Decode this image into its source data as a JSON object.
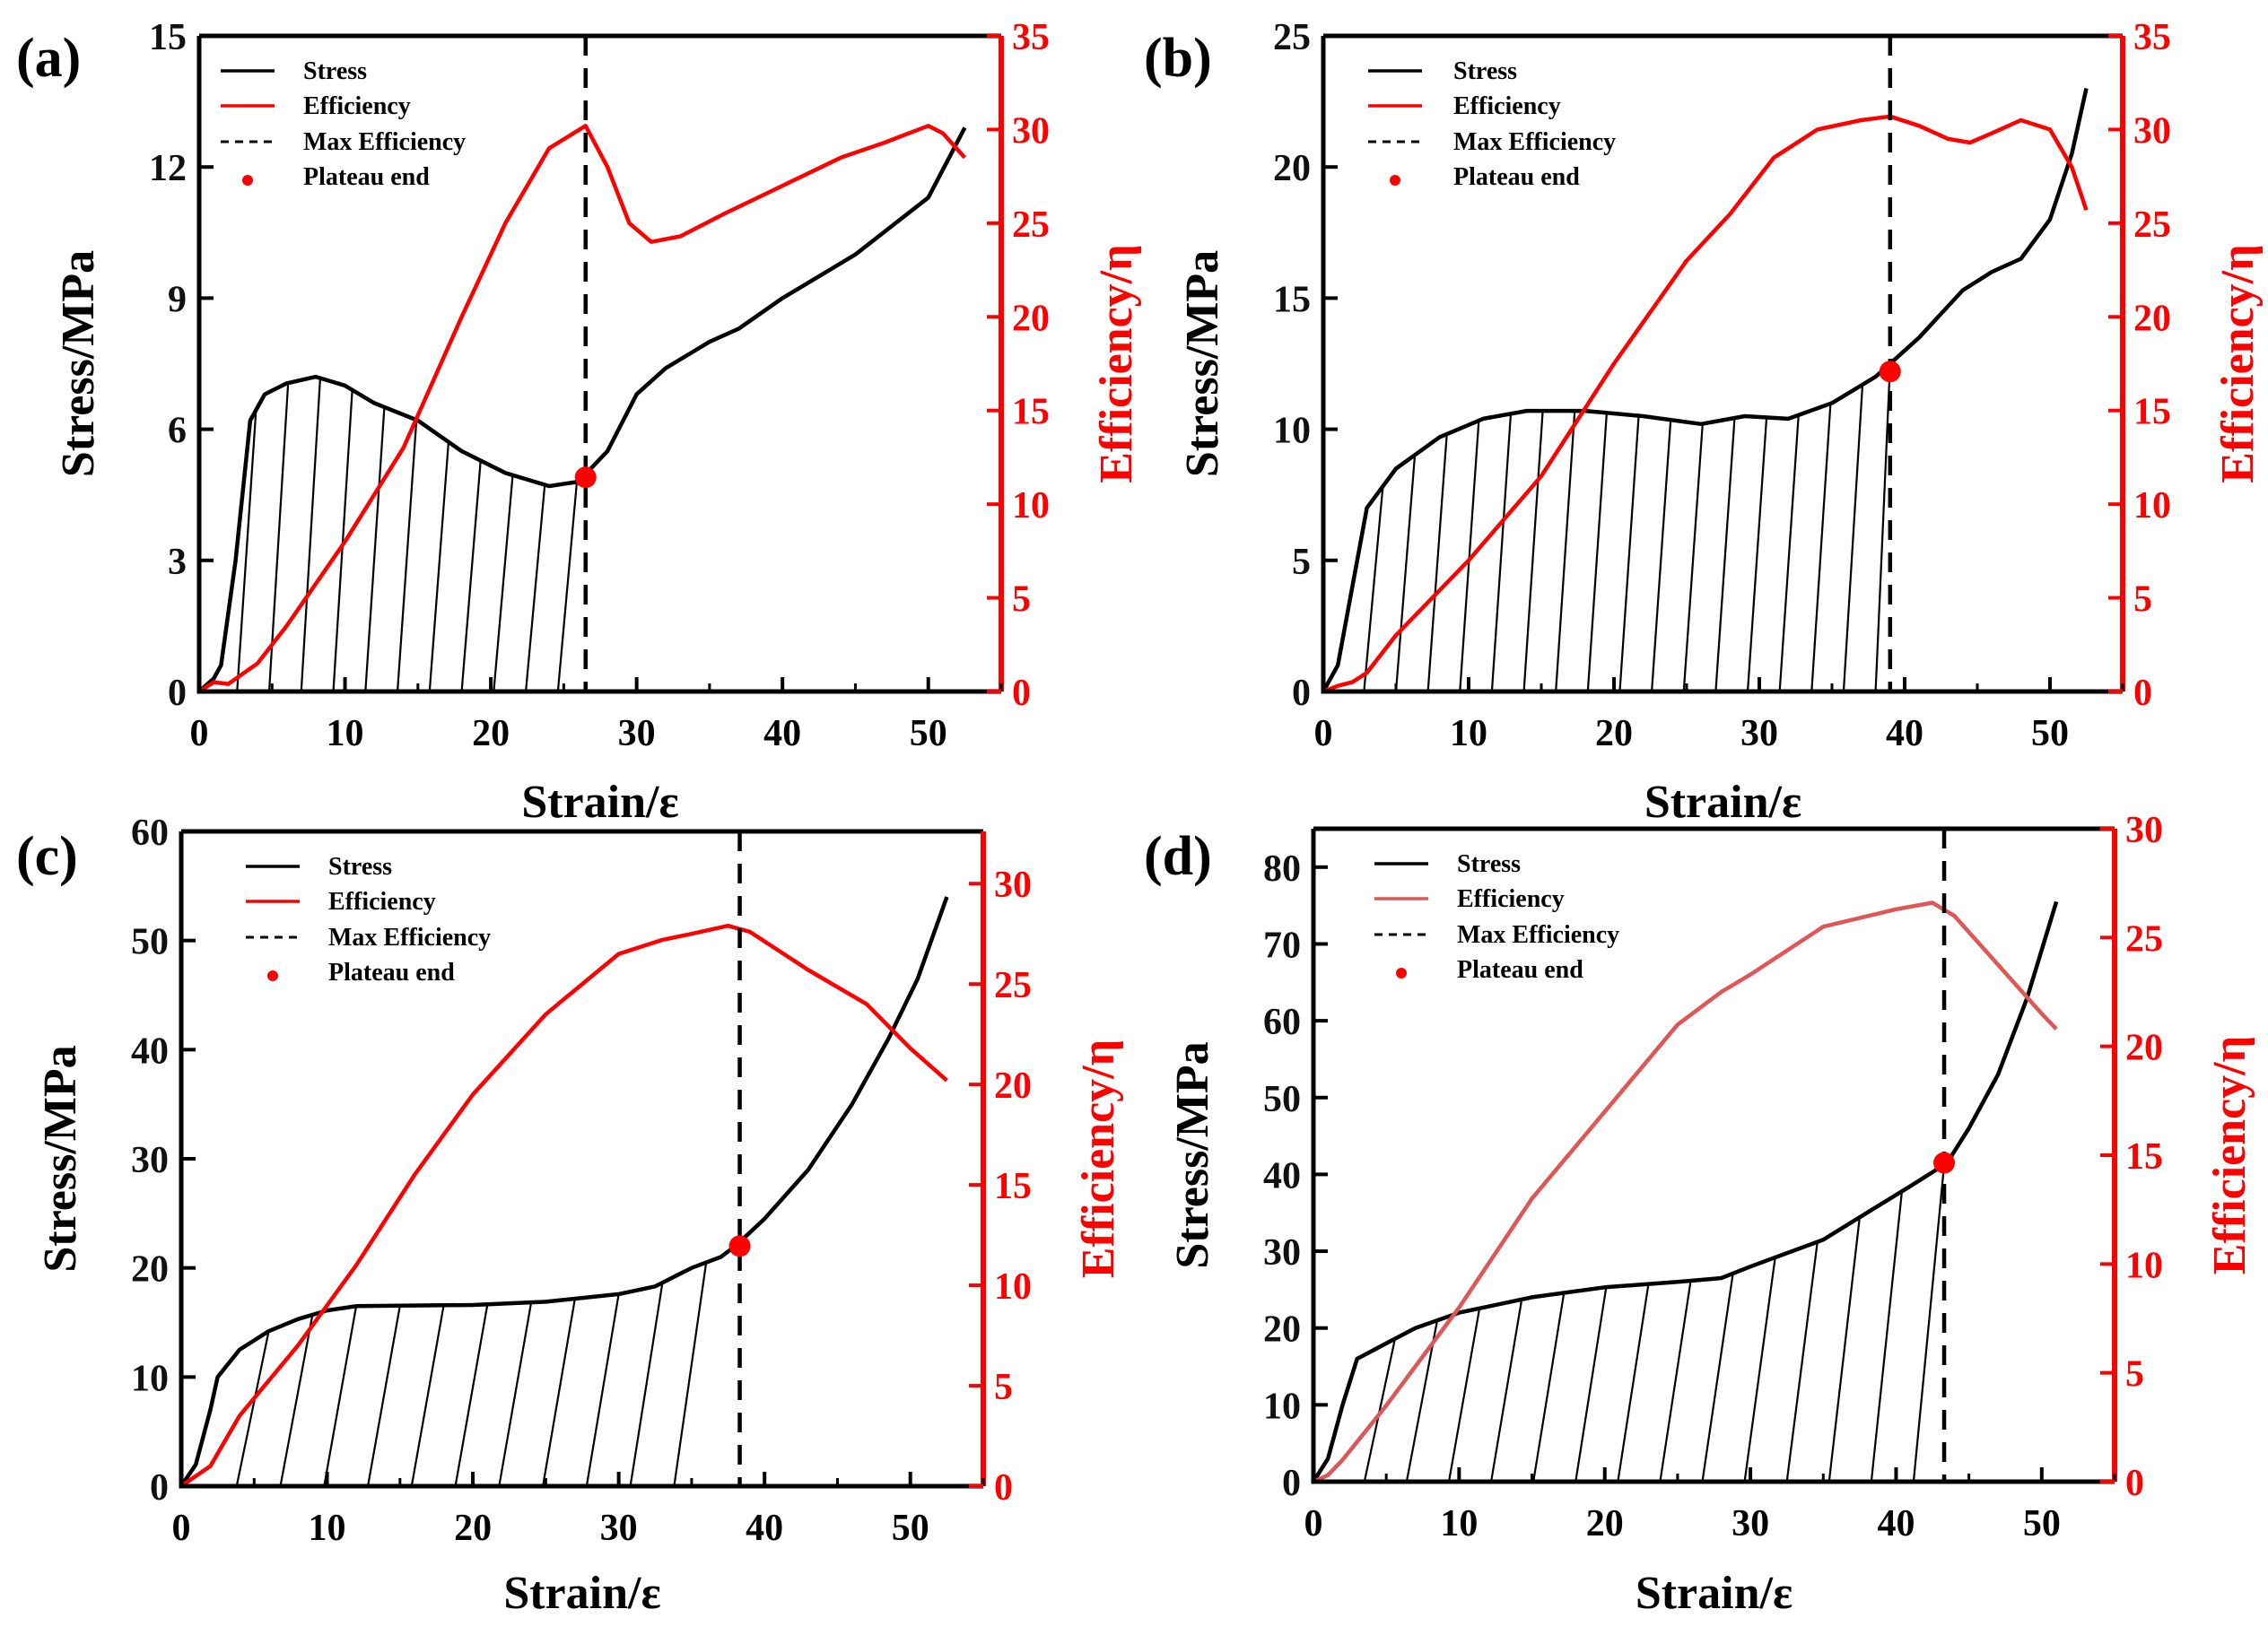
{
  "chart_data": [
    {
      "panel_label": "(a)",
      "type": "line",
      "xlabel": "Strain/ε",
      "ylabel": "Stress/MPa",
      "y2label": "Efficiency/η",
      "xlim": [
        0,
        55
      ],
      "ylim": [
        0,
        15
      ],
      "y2lim": [
        0,
        35
      ],
      "xticks": [
        0,
        10,
        20,
        30,
        40,
        50
      ],
      "yticks": [
        0,
        3,
        6,
        9,
        12,
        15
      ],
      "y2ticks": [
        0,
        5,
        10,
        15,
        20,
        25,
        30,
        35
      ],
      "legend": [
        "Stress",
        "Efficiency",
        "Max Efficiency",
        "Plateau end"
      ],
      "legend_position": "top-left",
      "max_efficiency_strain": 26.5,
      "plateau_end": [
        26.5,
        4.9
      ],
      "efficiency_color": "#ff0000",
      "stress": [
        [
          0,
          0
        ],
        [
          1,
          0.3
        ],
        [
          1.5,
          0.6
        ],
        [
          2.5,
          3
        ],
        [
          3.5,
          6.2
        ],
        [
          4.5,
          6.8
        ],
        [
          6,
          7.05
        ],
        [
          8,
          7.2
        ],
        [
          10,
          7.0
        ],
        [
          12,
          6.6
        ],
        [
          15,
          6.2
        ],
        [
          18,
          5.5
        ],
        [
          21,
          5.0
        ],
        [
          24,
          4.7
        ],
        [
          26,
          4.8
        ],
        [
          28,
          5.5
        ],
        [
          30,
          6.8
        ],
        [
          32,
          7.4
        ],
        [
          35,
          8.0
        ],
        [
          37,
          8.3
        ],
        [
          40,
          9.0
        ],
        [
          45,
          10.0
        ],
        [
          50,
          11.3
        ],
        [
          52.5,
          12.9
        ]
      ],
      "efficiency": [
        [
          0,
          0
        ],
        [
          1,
          0.5
        ],
        [
          2,
          0.4
        ],
        [
          4,
          1.5
        ],
        [
          6,
          3.5
        ],
        [
          10,
          8
        ],
        [
          14,
          13
        ],
        [
          18,
          20
        ],
        [
          21,
          25
        ],
        [
          24,
          29
        ],
        [
          26.5,
          30.2
        ],
        [
          28,
          28
        ],
        [
          29.5,
          25
        ],
        [
          31,
          24
        ],
        [
          33,
          24.3
        ],
        [
          36,
          25.5
        ],
        [
          40,
          27
        ],
        [
          44,
          28.5
        ],
        [
          47,
          29.3
        ],
        [
          50,
          30.2
        ],
        [
          51,
          29.8
        ],
        [
          52.5,
          28.5
        ]
      ]
    },
    {
      "panel_label": "(b)",
      "type": "line",
      "xlabel": "Strain/ε",
      "ylabel": "Stress/MPa",
      "y2label": "Efficiency/η",
      "xlim": [
        0,
        55
      ],
      "ylim": [
        0,
        25
      ],
      "y2lim": [
        0,
        35
      ],
      "xticks": [
        0,
        10,
        20,
        30,
        40,
        50
      ],
      "yticks": [
        0,
        5,
        10,
        15,
        20,
        25
      ],
      "y2ticks": [
        0,
        5,
        10,
        15,
        20,
        25,
        30,
        35
      ],
      "legend": [
        "Stress",
        "Efficiency",
        "Max Efficiency",
        "Plateau end"
      ],
      "legend_position": "top-left",
      "max_efficiency_strain": 39,
      "plateau_end": [
        39,
        12.2
      ],
      "efficiency_color": "#ff0000",
      "stress": [
        [
          0,
          0
        ],
        [
          1,
          1
        ],
        [
          2,
          4
        ],
        [
          3,
          7
        ],
        [
          5,
          8.5
        ],
        [
          8,
          9.7
        ],
        [
          11,
          10.4
        ],
        [
          14,
          10.7
        ],
        [
          18,
          10.7
        ],
        [
          22,
          10.5
        ],
        [
          26,
          10.2
        ],
        [
          29,
          10.5
        ],
        [
          32,
          10.4
        ],
        [
          35,
          11
        ],
        [
          38,
          12
        ],
        [
          41,
          13.5
        ],
        [
          44,
          15.3
        ],
        [
          46,
          16.0
        ],
        [
          48,
          16.5
        ],
        [
          50,
          18
        ],
        [
          51.5,
          20.5
        ],
        [
          52.5,
          23
        ]
      ],
      "efficiency": [
        [
          0,
          0
        ],
        [
          1,
          0.3
        ],
        [
          2,
          0.5
        ],
        [
          3,
          1
        ],
        [
          5,
          3
        ],
        [
          10,
          7
        ],
        [
          15,
          11.5
        ],
        [
          20,
          17.5
        ],
        [
          25,
          23
        ],
        [
          28,
          25.5
        ],
        [
          31,
          28.5
        ],
        [
          34,
          30
        ],
        [
          37,
          30.5
        ],
        [
          39,
          30.7
        ],
        [
          41,
          30.2
        ],
        [
          43,
          29.5
        ],
        [
          44.5,
          29.3
        ],
        [
          46,
          29.8
        ],
        [
          48,
          30.5
        ],
        [
          50,
          30
        ],
        [
          51.5,
          28
        ],
        [
          52.5,
          25.7
        ]
      ]
    },
    {
      "panel_label": "(c)",
      "type": "line",
      "xlabel": "Strain/ε",
      "ylabel": "Stress/MPa",
      "y2label": "Efficiency/η",
      "xlim": [
        0,
        55
      ],
      "ylim": [
        0,
        60
      ],
      "y2lim": [
        0,
        32.6
      ],
      "xticks": [
        0,
        10,
        20,
        30,
        40,
        50
      ],
      "yticks": [
        0,
        10,
        20,
        30,
        40,
        50,
        60
      ],
      "y2ticks": [
        0,
        5,
        10,
        15,
        20,
        25,
        30
      ],
      "legend": [
        "Stress",
        "Efficiency",
        "Max Efficiency",
        "Plateau end"
      ],
      "legend_position": "top-left",
      "max_efficiency_strain": 38.3,
      "plateau_end": [
        38.3,
        22
      ],
      "efficiency_color": "#ff0000",
      "stress": [
        [
          0,
          0
        ],
        [
          1,
          2
        ],
        [
          2,
          7
        ],
        [
          2.5,
          10
        ],
        [
          4,
          12.5
        ],
        [
          6,
          14.2
        ],
        [
          8,
          15.3
        ],
        [
          10,
          16.1
        ],
        [
          12,
          16.5
        ],
        [
          20,
          16.6
        ],
        [
          25,
          16.9
        ],
        [
          30,
          17.6
        ],
        [
          32.5,
          18.3
        ],
        [
          35,
          20
        ],
        [
          37,
          21
        ],
        [
          38,
          22
        ],
        [
          40,
          24.5
        ],
        [
          43,
          29
        ],
        [
          46,
          35
        ],
        [
          48.5,
          41
        ],
        [
          50.5,
          46.5
        ],
        [
          52.5,
          54
        ]
      ],
      "efficiency": [
        [
          0,
          0
        ],
        [
          2,
          1
        ],
        [
          4,
          3.5
        ],
        [
          8,
          7
        ],
        [
          12,
          11
        ],
        [
          16,
          15.5
        ],
        [
          20,
          19.5
        ],
        [
          25,
          23.5
        ],
        [
          30,
          26.5
        ],
        [
          33,
          27.2
        ],
        [
          35,
          27.5
        ],
        [
          37.5,
          27.9
        ],
        [
          39,
          27.6
        ],
        [
          43,
          25.7
        ],
        [
          47,
          24
        ],
        [
          50,
          21.8
        ],
        [
          52.5,
          20.2
        ]
      ]
    },
    {
      "panel_label": "(d)",
      "type": "line",
      "xlabel": "Strain/ε",
      "ylabel": "Stress/MPa",
      "y2label": "Efficiency/η",
      "xlim": [
        0,
        55
      ],
      "ylim": [
        0,
        85
      ],
      "y2lim": [
        0,
        30
      ],
      "xticks": [
        0,
        10,
        20,
        30,
        40,
        50
      ],
      "yticks": [
        0,
        10,
        20,
        30,
        40,
        50,
        60,
        70,
        80
      ],
      "y2ticks": [
        0,
        5,
        10,
        15,
        20,
        25,
        30
      ],
      "legend": [
        "Stress",
        "Efficiency",
        "Max Efficiency",
        "Plateau end"
      ],
      "legend_position": "top-left",
      "max_efficiency_strain": 43.3,
      "plateau_end": [
        43.3,
        41.5
      ],
      "efficiency_color": "#e05555",
      "stress": [
        [
          0,
          0
        ],
        [
          1,
          3
        ],
        [
          2,
          10
        ],
        [
          3,
          16
        ],
        [
          5,
          18
        ],
        [
          7,
          20
        ],
        [
          10,
          22
        ],
        [
          15,
          24
        ],
        [
          20,
          25.3
        ],
        [
          25,
          26
        ],
        [
          28,
          26.5
        ],
        [
          30,
          28
        ],
        [
          35,
          31.5
        ],
        [
          38,
          35
        ],
        [
          41,
          38.5
        ],
        [
          43.5,
          41.5
        ],
        [
          45,
          46
        ],
        [
          47,
          53
        ],
        [
          49,
          63
        ],
        [
          51,
          75.5
        ]
      ],
      "efficiency": [
        [
          0,
          0
        ],
        [
          1,
          0.3
        ],
        [
          2,
          1
        ],
        [
          5,
          3.5
        ],
        [
          10,
          8
        ],
        [
          15,
          13
        ],
        [
          20,
          17
        ],
        [
          25,
          21
        ],
        [
          28,
          22.5
        ],
        [
          30,
          23.3
        ],
        [
          35,
          25.5
        ],
        [
          40,
          26.3
        ],
        [
          42.5,
          26.6
        ],
        [
          44,
          26
        ],
        [
          46,
          24.5
        ],
        [
          48,
          23
        ],
        [
          50,
          21.5
        ],
        [
          51,
          20.8
        ]
      ]
    }
  ]
}
